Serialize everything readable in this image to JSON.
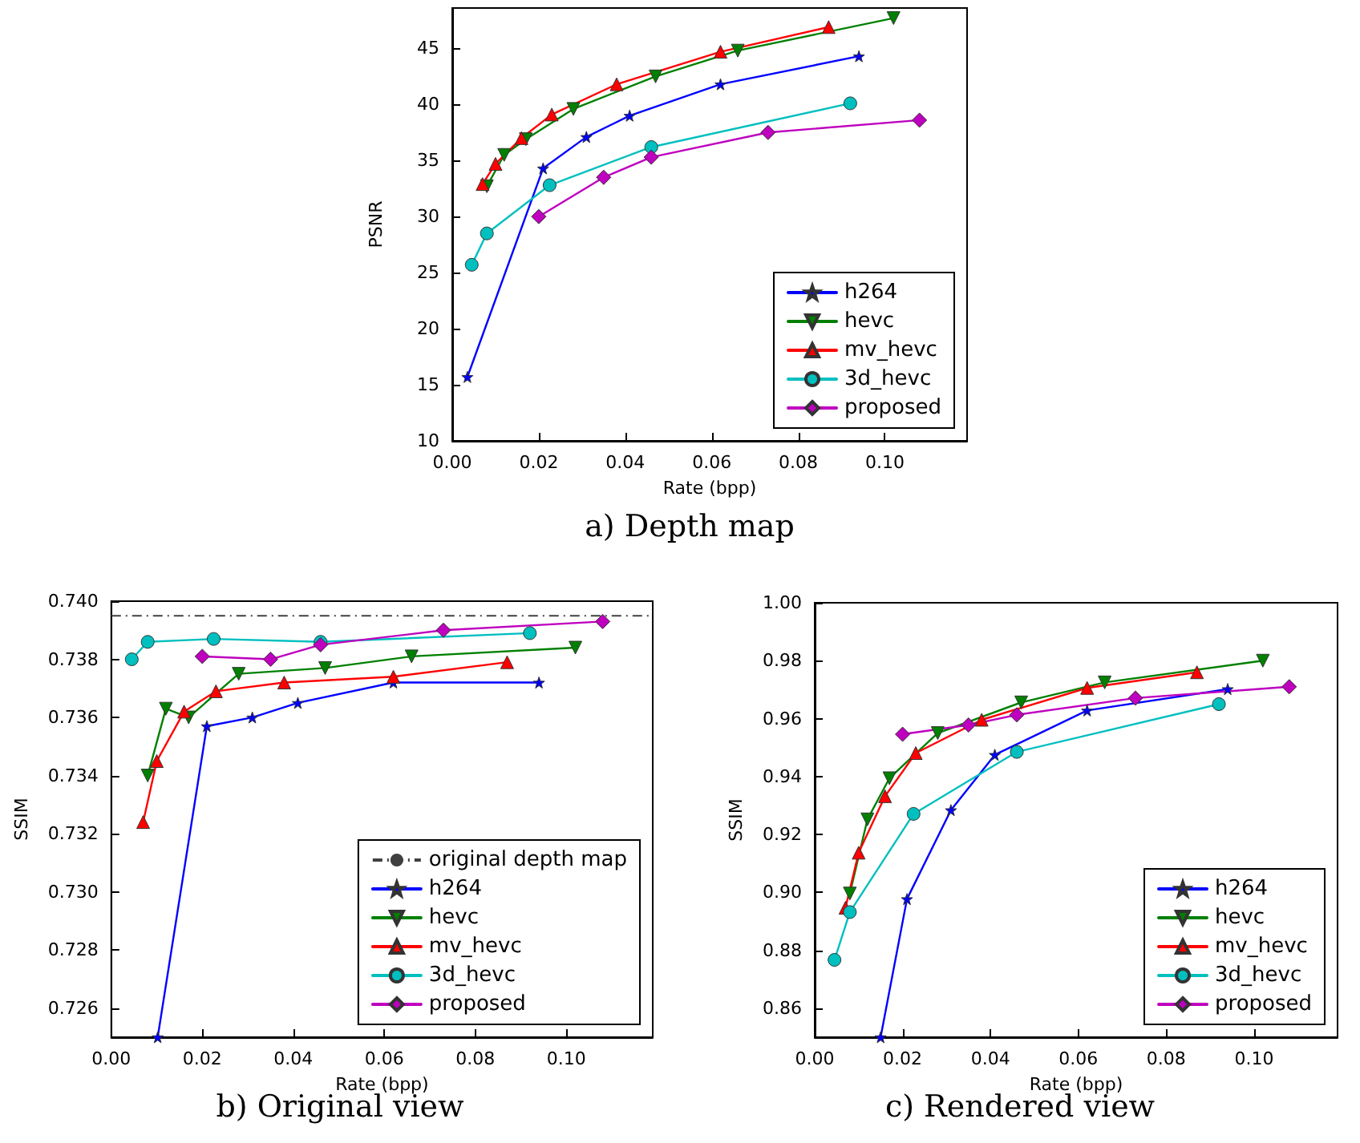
{
  "chart_data": [
    {
      "type": "line",
      "title": "a) Depth map",
      "xlabel": "Rate (bpp)",
      "ylabel": "PSNR",
      "xlim": [
        0,
        0.119
      ],
      "ylim": [
        10,
        48.6
      ],
      "xticks": [
        {
          "value": 0,
          "label": "0.00"
        },
        {
          "value": 0.02,
          "label": "0.02"
        },
        {
          "value": 0.04,
          "label": "0.04"
        },
        {
          "value": 0.06,
          "label": "0.06"
        },
        {
          "value": 0.08,
          "label": "0.08"
        },
        {
          "value": 0.1,
          "label": "0.10"
        }
      ],
      "yticks": [
        10,
        15,
        20,
        25,
        30,
        35,
        40,
        45
      ],
      "grid": false,
      "legend": "bottom right",
      "series": [
        {
          "name": "h264",
          "color": "#0000ff",
          "marker": "star",
          "x": [
            0.0035,
            0.021,
            0.031,
            0.041,
            0.062,
            0.094
          ],
          "values": [
            15.7,
            34.3,
            37.1,
            39.0,
            41.8,
            44.3
          ]
        },
        {
          "name": "hevc",
          "color": "#008000",
          "marker": "triangle-down",
          "x": [
            0.008,
            0.012,
            0.017,
            0.028,
            0.047,
            0.066,
            0.102
          ],
          "values": [
            32.7,
            35.5,
            36.9,
            39.6,
            42.5,
            44.8,
            47.7
          ]
        },
        {
          "name": "mv_hevc",
          "color": "#ff0000",
          "marker": "triangle",
          "x": [
            0.007,
            0.01,
            0.016,
            0.023,
            0.038,
            0.062,
            0.087
          ],
          "values": [
            32.9,
            34.7,
            37.0,
            39.1,
            41.8,
            44.7,
            46.9
          ]
        },
        {
          "name": "3d_hevc",
          "color": "#00bfbf",
          "marker": "circle",
          "x": [
            0.0045,
            0.008,
            0.0225,
            0.046,
            0.092
          ],
          "values": [
            25.7,
            28.5,
            32.8,
            36.2,
            40.1
          ]
        },
        {
          "name": "proposed",
          "color": "#bf00bf",
          "marker": "diamond",
          "x": [
            0.02,
            0.035,
            0.046,
            0.073,
            0.108
          ],
          "values": [
            30.0,
            33.5,
            35.3,
            37.5,
            38.6
          ]
        }
      ]
    },
    {
      "type": "line",
      "title": "b) Original view",
      "xlabel": "Rate (bpp)",
      "ylabel": "SSIM",
      "xlim": [
        0,
        0.119
      ],
      "ylim": [
        0.725,
        0.74
      ],
      "xticks": [
        {
          "value": 0,
          "label": "0.00"
        },
        {
          "value": 0.02,
          "label": "0.02"
        },
        {
          "value": 0.04,
          "label": "0.04"
        },
        {
          "value": 0.06,
          "label": "0.06"
        },
        {
          "value": 0.08,
          "label": "0.08"
        },
        {
          "value": 0.1,
          "label": "0.10"
        }
      ],
      "yticks": [
        {
          "value": 0.726,
          "label": "0.726"
        },
        {
          "value": 0.728,
          "label": "0.728"
        },
        {
          "value": 0.73,
          "label": "0.730"
        },
        {
          "value": 0.732,
          "label": "0.732"
        },
        {
          "value": 0.734,
          "label": "0.734"
        },
        {
          "value": 0.736,
          "label": "0.736"
        },
        {
          "value": 0.738,
          "label": "0.738"
        },
        {
          "value": 0.74,
          "label": "0.740"
        }
      ],
      "grid": false,
      "legend": "bottom right",
      "ref_lines": [
        {
          "axis": "y",
          "value": 0.7395,
          "label": "original depth map",
          "color": "#404040"
        }
      ],
      "series": [
        {
          "name": "h264",
          "color": "#0000ff",
          "marker": "star",
          "x": [
            0.0102,
            0.021,
            0.031,
            0.041,
            0.062,
            0.094
          ],
          "values": [
            0.725,
            0.7357,
            0.736,
            0.7365,
            0.7372,
            0.7372
          ]
        },
        {
          "name": "hevc",
          "color": "#008000",
          "marker": "triangle-down",
          "x": [
            0.008,
            0.012,
            0.017,
            0.028,
            0.047,
            0.066,
            0.102
          ],
          "values": [
            0.734,
            0.7363,
            0.736,
            0.7375,
            0.7377,
            0.7381,
            0.7384
          ]
        },
        {
          "name": "mv_hevc",
          "color": "#ff0000",
          "marker": "triangle",
          "x": [
            0.007,
            0.01,
            0.016,
            0.023,
            0.038,
            0.062,
            0.087
          ],
          "values": [
            0.7324,
            0.7345,
            0.7362,
            0.7369,
            0.7372,
            0.7374,
            0.7379
          ]
        },
        {
          "name": "3d_hevc",
          "color": "#00bfbf",
          "marker": "circle",
          "x": [
            0.0045,
            0.008,
            0.0225,
            0.046,
            0.092
          ],
          "values": [
            0.738,
            0.7386,
            0.7387,
            0.7386,
            0.7389
          ]
        },
        {
          "name": "proposed",
          "color": "#bf00bf",
          "marker": "diamond",
          "x": [
            0.02,
            0.035,
            0.046,
            0.073,
            0.108
          ],
          "values": [
            0.7381,
            0.738,
            0.7385,
            0.739,
            0.7393
          ]
        }
      ]
    },
    {
      "type": "line",
      "title": "c) Rendered view",
      "xlabel": "Rate (bpp)",
      "ylabel": "SSIM",
      "xlim": [
        0,
        0.119
      ],
      "ylim": [
        0.85,
        1.0
      ],
      "xticks": [
        {
          "value": 0,
          "label": "0.00"
        },
        {
          "value": 0.02,
          "label": "0.02"
        },
        {
          "value": 0.04,
          "label": "0.04"
        },
        {
          "value": 0.06,
          "label": "0.06"
        },
        {
          "value": 0.08,
          "label": "0.08"
        },
        {
          "value": 0.1,
          "label": "0.10"
        }
      ],
      "yticks": [
        {
          "value": 0.86,
          "label": "0.86"
        },
        {
          "value": 0.88,
          "label": "0.88"
        },
        {
          "value": 0.9,
          "label": "0.90"
        },
        {
          "value": 0.92,
          "label": "0.92"
        },
        {
          "value": 0.94,
          "label": "0.94"
        },
        {
          "value": 0.96,
          "label": "0.96"
        },
        {
          "value": 0.98,
          "label": "0.98"
        },
        {
          "value": 1.0,
          "label": "1.00"
        }
      ],
      "grid": false,
      "legend": "bottom right",
      "series": [
        {
          "name": "h264",
          "color": "#0000ff",
          "marker": "star",
          "x": [
            0.015,
            0.021,
            0.031,
            0.041,
            0.062,
            0.094
          ],
          "values": [
            0.85,
            0.8977,
            0.9284,
            0.9475,
            0.9628,
            0.9702
          ]
        },
        {
          "name": "hevc",
          "color": "#008000",
          "marker": "triangle-down",
          "x": [
            0.008,
            0.012,
            0.017,
            0.028,
            0.047,
            0.066,
            0.102
          ],
          "values": [
            0.8996,
            0.9252,
            0.9394,
            0.955,
            0.9656,
            0.9725,
            0.98
          ]
        },
        {
          "name": "mv_hevc",
          "color": "#ff0000",
          "marker": "triangle",
          "x": [
            0.007,
            0.01,
            0.016,
            0.023,
            0.038,
            0.062,
            0.087
          ],
          "values": [
            0.8947,
            0.9137,
            0.9332,
            0.9481,
            0.9596,
            0.9706,
            0.976
          ]
        },
        {
          "name": "3d_hevc",
          "color": "#00bfbf",
          "marker": "circle",
          "x": [
            0.0045,
            0.008,
            0.0225,
            0.046,
            0.092
          ],
          "values": [
            0.8767,
            0.8932,
            0.9271,
            0.9485,
            0.965
          ]
        },
        {
          "name": "proposed",
          "color": "#bf00bf",
          "marker": "diamond",
          "x": [
            0.02,
            0.035,
            0.046,
            0.073,
            0.108
          ],
          "values": [
            0.9546,
            0.9578,
            0.9613,
            0.9671,
            0.971
          ]
        }
      ]
    }
  ]
}
